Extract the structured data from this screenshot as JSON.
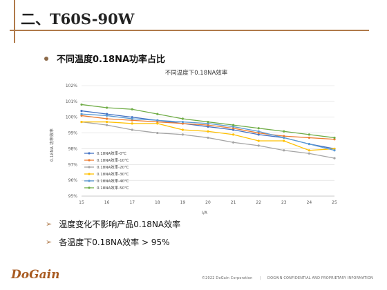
{
  "slide": {
    "title": "二、T60S-90W",
    "bullet": "不同温度0.18NA功率占比",
    "points": [
      "温度变化不影响产品0.18NA效率",
      "各温度下0.18NA效率 > 95%"
    ],
    "logo": "DoGain",
    "footer_copyright": "©2022 DoGain Corporation",
    "footer_confidential": "DOGAIN CONFIDENTIAL AND PROPRIETARY INFORMATION"
  },
  "colors": {
    "accent": "#b07a4a",
    "logo": "#a85a20",
    "series": [
      "#4472c4",
      "#ed7d31",
      "#a5a5a5",
      "#ffc000",
      "#5b9bd5",
      "#70ad47"
    ]
  },
  "chart_data": {
    "type": "line",
    "title": "不同温度下0.18NA效率",
    "xlabel": "I/A",
    "ylabel": "0.18NA 功率效率",
    "x": [
      15,
      16,
      17,
      18,
      19,
      20,
      21,
      22,
      23,
      24,
      25
    ],
    "ylim": [
      95,
      102
    ],
    "yticks": [
      "95%",
      "96%",
      "97%",
      "98%",
      "99%",
      "100%",
      "101%",
      "102%"
    ],
    "grid": true,
    "legend_position": "bottom-left inside",
    "series": [
      {
        "name": "0.18NA效率-0℃",
        "values": [
          100.4,
          100.2,
          100.0,
          99.8,
          99.6,
          99.4,
          99.2,
          98.9,
          98.7,
          98.3,
          98.0
        ]
      },
      {
        "name": "0.18NA效率-10℃",
        "values": [
          100.1,
          99.9,
          99.8,
          99.7,
          99.6,
          99.5,
          99.3,
          99.0,
          98.8,
          98.7,
          98.6
        ]
      },
      {
        "name": "0.18NA效率-20℃",
        "values": [
          99.7,
          99.5,
          99.2,
          99.0,
          98.9,
          98.7,
          98.4,
          98.2,
          97.9,
          97.7,
          97.4
        ]
      },
      {
        "name": "0.18NA效率-30℃",
        "values": [
          99.7,
          99.7,
          99.6,
          99.6,
          99.2,
          99.1,
          98.9,
          98.5,
          98.5,
          97.9,
          98.0
        ]
      },
      {
        "name": "0.18NA效率-40℃",
        "values": [
          100.2,
          100.1,
          99.9,
          99.8,
          99.7,
          99.6,
          99.4,
          99.1,
          98.7,
          98.3,
          97.9
        ]
      },
      {
        "name": "0.18NA效率-50℃",
        "values": [
          100.8,
          100.6,
          100.5,
          100.2,
          99.9,
          99.7,
          99.5,
          99.3,
          99.1,
          98.9,
          98.7
        ]
      }
    ]
  }
}
